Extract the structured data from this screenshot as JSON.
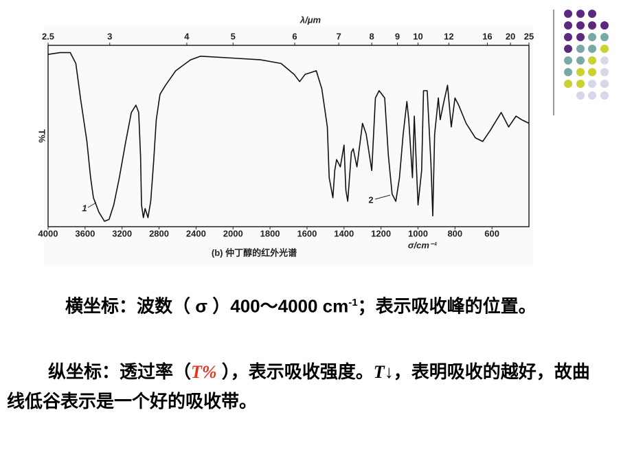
{
  "chart_data": {
    "type": "line",
    "title": "(b) 仲丁醇的红外光谱",
    "xlabel": "σ/cm⁻¹",
    "x2label": "λ/μm",
    "ylabel": "T%",
    "annotations": [
      "1",
      "2"
    ],
    "color": "#111111",
    "xlim": [
      4000,
      400
    ],
    "ylim": [
      0,
      100
    ],
    "xticks": [
      4000,
      3600,
      3200,
      2800,
      2400,
      2000,
      1800,
      1600,
      1400,
      1200,
      1000,
      800,
      600
    ],
    "x2ticks": [
      2.5,
      3,
      4,
      5,
      6,
      7,
      8,
      9,
      10,
      12,
      16,
      20,
      25
    ],
    "x": [
      4000,
      3870,
      3760,
      3700,
      3650,
      3580,
      3540,
      3510,
      3450,
      3390,
      3340,
      3290,
      3230,
      3160,
      3100,
      3050,
      3020,
      3000,
      2990,
      2970,
      2950,
      2920,
      2890,
      2860,
      2830,
      2790,
      2730,
      2620,
      2460,
      2350,
      2010,
      1850,
      1740,
      1670,
      1640,
      1610,
      1550,
      1520,
      1490,
      1480,
      1460,
      1450,
      1440,
      1420,
      1400,
      1390,
      1380,
      1360,
      1350,
      1330,
      1300,
      1280,
      1250,
      1230,
      1210,
      1180,
      1160,
      1140,
      1120,
      1100,
      1080,
      1060,
      1050,
      1030,
      1020,
      1000,
      980,
      970,
      950,
      930,
      920,
      910,
      890,
      880,
      860,
      840,
      820,
      800,
      780,
      740,
      690,
      650,
      610,
      550,
      510,
      470,
      440,
      400
    ],
    "values": [
      95,
      96,
      96,
      90,
      71,
      47,
      27,
      16,
      8,
      3,
      4,
      12,
      27,
      47,
      63,
      67,
      63,
      39,
      12,
      5,
      10,
      5,
      14,
      35,
      59,
      73,
      78,
      86,
      92,
      94,
      93,
      92,
      90,
      84,
      80,
      84,
      86,
      76,
      55,
      27,
      16,
      31,
      37,
      33,
      45,
      20,
      14,
      41,
      43,
      33,
      57,
      51,
      31,
      71,
      75,
      71,
      39,
      18,
      14,
      27,
      51,
      69,
      59,
      27,
      61,
      12,
      31,
      75,
      75,
      35,
      6,
      51,
      71,
      59,
      69,
      78,
      55,
      71,
      67,
      57,
      49,
      47,
      53,
      63,
      55,
      61,
      59,
      57
    ]
  },
  "text": {
    "p1": [
      "横坐标：波数（ σ ）400～4000 cm",
      "-1",
      "；表示吸收峰的位置。"
    ],
    "p2": [
      "纵坐标：透过率（",
      "T%",
      " ），表示吸收强度。",
      "T",
      "↓，表明吸收的越好，故曲线低谷表示是一个好的吸收带。"
    ]
  }
}
